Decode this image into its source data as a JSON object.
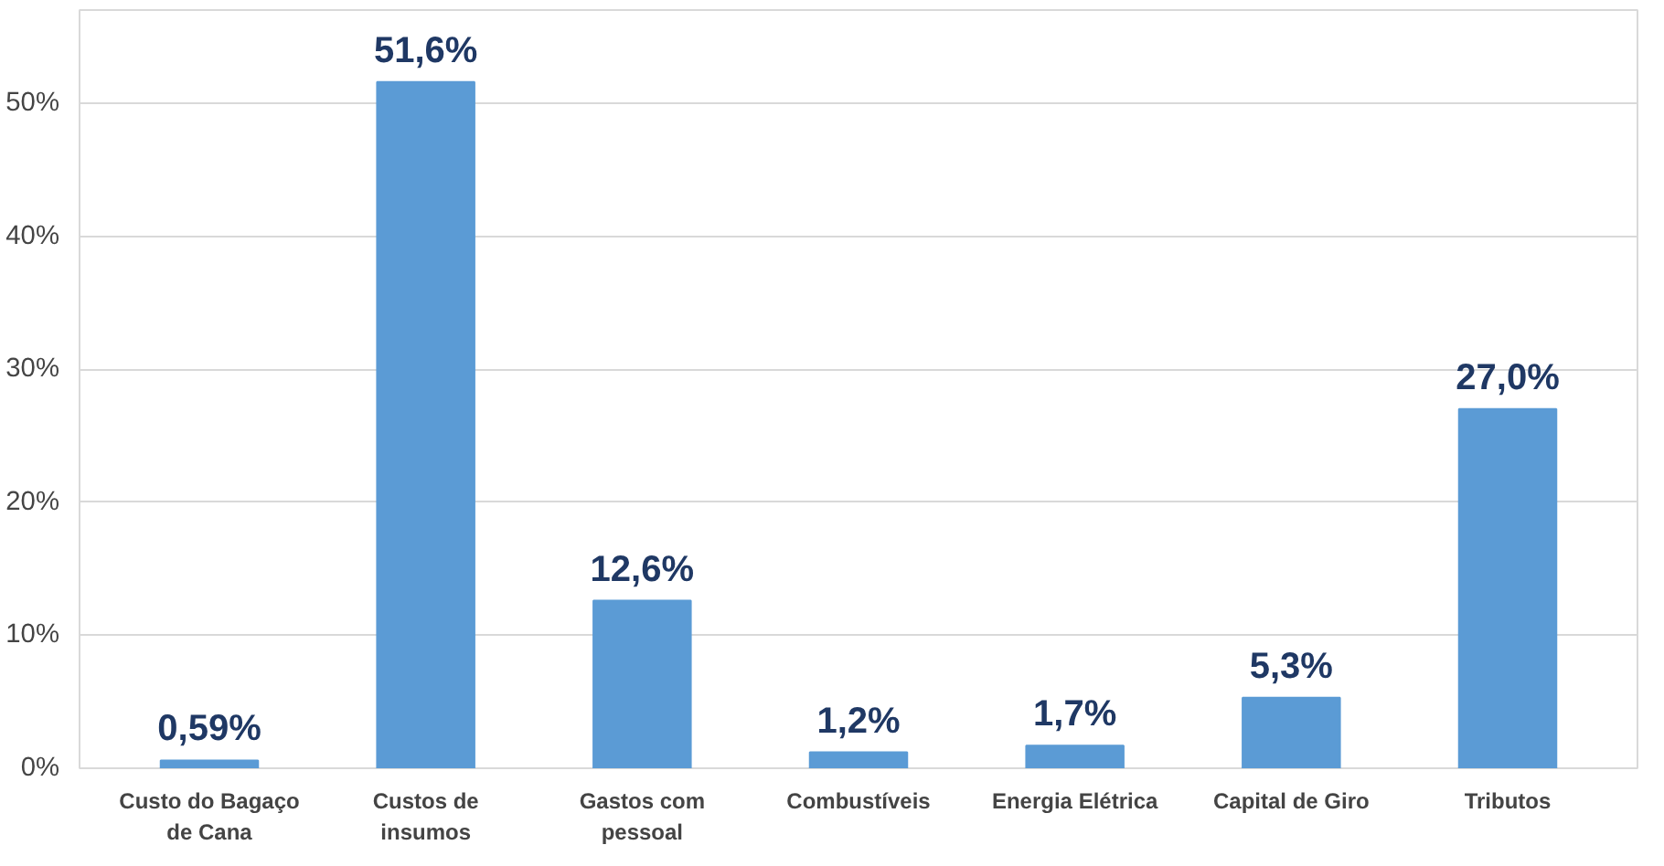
{
  "chart_data": {
    "type": "bar",
    "categories": [
      "Custo do Bagaço de Cana",
      "Custos de insumos",
      "Gastos com pessoal",
      "Combustíveis",
      "Energia Elétrica",
      "Capital de Giro",
      "Tributos"
    ],
    "values": [
      0.59,
      51.6,
      12.6,
      1.2,
      1.7,
      5.3,
      27.0
    ],
    "value_labels": [
      "0,59%",
      "51,6%",
      "12,6%",
      "1,2%",
      "1,7%",
      "5,3%",
      "27,0%"
    ],
    "color": "#5b9bd5",
    "ylim": [
      0,
      57
    ],
    "yticks": [
      {
        "value": 0,
        "label": "0%"
      },
      {
        "value": 10,
        "label": "10%"
      },
      {
        "value": 20,
        "label": "20%"
      },
      {
        "value": 30,
        "label": "30%"
      },
      {
        "value": 40,
        "label": "40%"
      },
      {
        "value": 50,
        "label": "50%"
      }
    ],
    "grid": "y"
  }
}
